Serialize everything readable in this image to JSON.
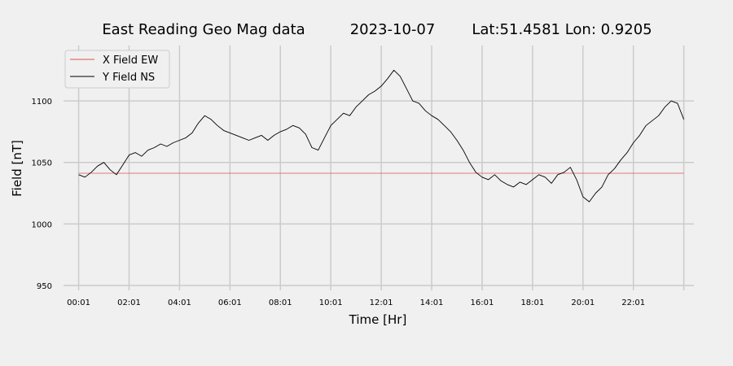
{
  "chart_data": {
    "type": "line",
    "title_parts": [
      "East Reading Geo Mag data",
      "2023-10-07",
      "Lat:51.4581  Lon: 0.9205"
    ],
    "xlabel": "Time  [Hr]",
    "ylabel": "Field  [nT]",
    "x_tick_labels": [
      "00:01",
      "02:01",
      "04:01",
      "06:01",
      "08:01",
      "10:01",
      "12:01",
      "14:01",
      "16:01",
      "18:01",
      "20:01",
      "22:01"
    ],
    "xlim": [
      -0.6,
      24.4
    ],
    "ylim": [
      946,
      1145
    ],
    "y_ticks": [
      950,
      1000,
      1050,
      1100
    ],
    "grid": true,
    "legend_position": "top-left",
    "series": [
      {
        "name": "X Field EW",
        "color": "#d9534f",
        "x": [
          0,
          24
        ],
        "values": [
          1041.2,
          1041.2
        ]
      },
      {
        "name": "Y Field NS",
        "color": "#000000",
        "x": [
          0,
          0.25,
          0.5,
          0.75,
          1.0,
          1.25,
          1.5,
          1.75,
          2.0,
          2.25,
          2.5,
          2.75,
          3.0,
          3.25,
          3.5,
          3.75,
          4.0,
          4.25,
          4.5,
          4.75,
          5.0,
          5.25,
          5.5,
          5.75,
          6.0,
          6.25,
          6.5,
          6.75,
          7.0,
          7.25,
          7.5,
          7.75,
          8.0,
          8.25,
          8.5,
          8.75,
          9.0,
          9.25,
          9.5,
          9.75,
          10.0,
          10.25,
          10.5,
          10.75,
          11.0,
          11.25,
          11.5,
          11.75,
          12.0,
          12.25,
          12.5,
          12.75,
          13.0,
          13.25,
          13.5,
          13.75,
          14.0,
          14.25,
          14.5,
          14.75,
          15.0,
          15.25,
          15.5,
          15.75,
          16.0,
          16.25,
          16.5,
          16.75,
          17.0,
          17.25,
          17.5,
          17.75,
          18.0,
          18.25,
          18.5,
          18.75,
          19.0,
          19.25,
          19.5,
          19.75,
          20.0,
          20.25,
          20.5,
          20.75,
          21.0,
          21.25,
          21.5,
          21.75,
          22.0,
          22.25,
          22.5,
          22.75,
          23.0,
          23.25,
          23.5,
          23.75,
          24.0
        ],
        "values": [
          1040,
          1038,
          1042,
          1047,
          1050,
          1044,
          1040,
          1048,
          1056,
          1058,
          1055,
          1060,
          1062,
          1065,
          1063,
          1066,
          1068,
          1070,
          1074,
          1082,
          1088,
          1085,
          1080,
          1076,
          1074,
          1072,
          1070,
          1068,
          1070,
          1072,
          1068,
          1072,
          1075,
          1077,
          1080,
          1078,
          1073,
          1062,
          1060,
          1070,
          1080,
          1085,
          1090,
          1088,
          1095,
          1100,
          1105,
          1108,
          1112,
          1118,
          1125,
          1120,
          1110,
          1100,
          1098,
          1092,
          1088,
          1085,
          1080,
          1075,
          1068,
          1060,
          1050,
          1042,
          1038,
          1036,
          1040,
          1035,
          1032,
          1030,
          1034,
          1032,
          1036,
          1040,
          1038,
          1033,
          1040,
          1042,
          1046,
          1036,
          1022,
          1018,
          1025,
          1030,
          1040,
          1045,
          1052,
          1058,
          1066,
          1072,
          1080,
          1084,
          1088,
          1095,
          1100,
          1098,
          1085
        ]
      }
    ]
  }
}
